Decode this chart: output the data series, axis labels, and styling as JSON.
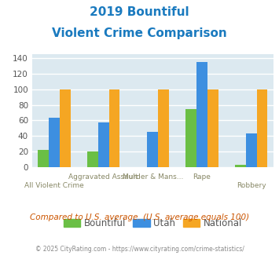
{
  "title_line1": "2019 Bountiful",
  "title_line2": "Violent Crime Comparison",
  "title_color": "#1a7abf",
  "categories": [
    "All Violent Crime",
    "Aggravated Assault",
    "Murder & Mans...",
    "Rape",
    "Robbery"
  ],
  "series": {
    "Bountiful": [
      22,
      20,
      0,
      75,
      3
    ],
    "Utah": [
      63,
      57,
      45,
      135,
      43
    ],
    "National": [
      100,
      100,
      100,
      100,
      100
    ]
  },
  "colors": {
    "Bountiful": "#6abf45",
    "Utah": "#3d8fe0",
    "National": "#f5a623"
  },
  "ylim": [
    0,
    145
  ],
  "yticks": [
    0,
    20,
    40,
    60,
    80,
    100,
    120,
    140
  ],
  "note": "Compared to U.S. average. (U.S. average equals 100)",
  "note_color": "#cc5500",
  "footer": "© 2025 CityRating.com - https://www.cityrating.com/crime-statistics/",
  "footer_color": "#888888",
  "bg_color": "#dce9f0",
  "grid_color": "#ffffff"
}
